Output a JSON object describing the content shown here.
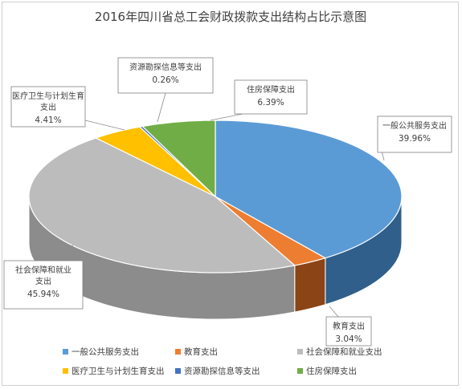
{
  "chart_data": {
    "type": "pie",
    "title": "2016年四川省总工会财政拨款支出结构占比示意图",
    "three_d": true,
    "start_angle": "12 o'clock",
    "direction": "clockwise",
    "legend_position": "bottom",
    "slices": [
      {
        "name": "一般公共服务支出",
        "value": 39.96,
        "label_name": "一般公共服务支出",
        "label_value": "39.96%",
        "color": "#5b9bd5",
        "side_color": "#2f5f8a"
      },
      {
        "name": "教育支出",
        "value": 3.04,
        "label_name": "教育支出",
        "label_value": "3.04%",
        "color": "#ed7d31",
        "side_color": "#8a4416"
      },
      {
        "name": "社会保障和就业支出",
        "value": 45.94,
        "label_name": "社会保障和就业支出",
        "label_value": "45.94%",
        "color": "#bcbcbc",
        "side_color": "#8c8c8c"
      },
      {
        "name": "医疗卫生与计划生育支出",
        "value": 4.41,
        "label_name": "医疗卫生与计划生育支出",
        "label_value": "4.41%",
        "color": "#ffc000",
        "side_color": "#b38600"
      },
      {
        "name": "资源勘探信息等支出",
        "value": 0.26,
        "label_name": "资源勘探信息等支出",
        "label_value": "0.26%",
        "color": "#4472c4",
        "side_color": "#2a4a85"
      },
      {
        "name": "住房保障支出",
        "value": 6.39,
        "label_name": "住房保障支出",
        "label_value": "6.39%",
        "color": "#70ad47",
        "side_color": "#46702c"
      }
    ],
    "legend": [
      "一般公共服务支出",
      "教育支出",
      "社会保障和就业支出",
      "医疗卫生与计划生育支出",
      "资源勘探信息等支出",
      "住房保障支出"
    ]
  }
}
